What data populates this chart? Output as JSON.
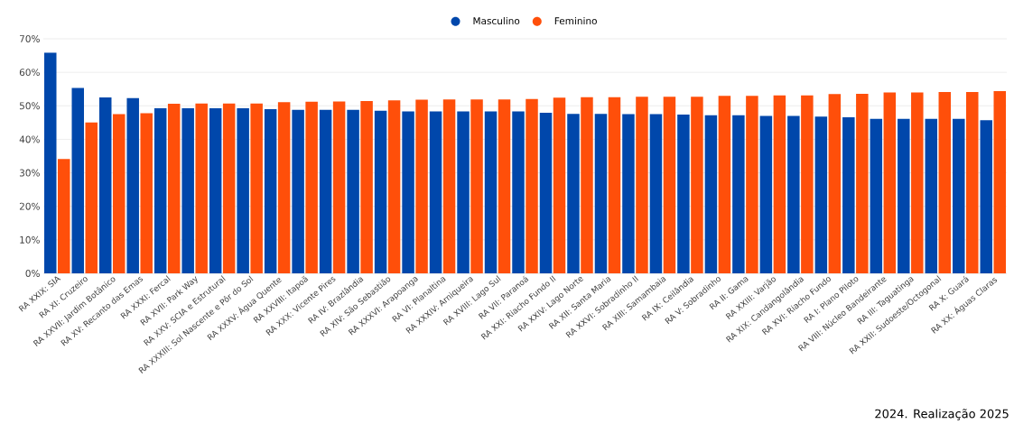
{
  "chart_data": {
    "type": "bar",
    "categories": [
      "RA XXIX: SIA",
      "RA XI: Cruzeiro",
      "RA XXVII: Jardim Botânico",
      "RA XV: Recanto das Emas",
      "RA XXXI: Fercal",
      "RA XVII: Park Way",
      "RA XXV: SCIA e Estrutural",
      "RA XXXIII: Sol Nascente e Pôr do Sol",
      "RA XXXV: Água Quente",
      "RA XXVIII: Itapoã",
      "RA XXX: Vicente Pires",
      "RA IV: Brazlândia",
      "RA XIV: São Sebastião",
      "RA XXXVI: Arapoanga",
      "RA VI: Planaltina",
      "RA XXXIV: Arniqueira",
      "RA XVIII: Lago Sul",
      "RA VII: Paranoá",
      "RA XXI: Riacho Fundo II",
      "RA XXIV: Lago Norte",
      "RA XII: Santa Maria",
      "RA XXVI: Sobradinho II",
      "RA XIII: Samambaia",
      "RA IX: Ceilândia",
      "RA V: Sobradinho",
      "RA II: Gama",
      "RA XXIII: Varjão",
      "RA XIX: Candangolândia",
      "RA XVI: Riacho Fundo",
      "RA I: Plano Piloto",
      "RA VIII: Núcleo Bandeirante",
      "RA III: Taguatinga",
      "RA XXII: Sudoeste/Octogonal",
      "RA X: Guará",
      "RA XX: Águas Claras"
    ],
    "series": [
      {
        "name": "Masculino",
        "color": "#0047ab",
        "values": [
          65.9,
          55.3,
          52.5,
          52.3,
          49.3,
          49.3,
          49.3,
          49.3,
          49.0,
          48.8,
          48.8,
          48.8,
          48.5,
          48.3,
          48.3,
          48.3,
          48.3,
          48.3,
          47.9,
          47.6,
          47.6,
          47.5,
          47.5,
          47.4,
          47.2,
          47.2,
          47.0,
          47.0,
          46.8,
          46.6,
          46.1,
          46.1,
          46.1,
          46.1,
          45.7
        ]
      },
      {
        "name": "Feminino",
        "color": "#ff4f0a",
        "values": [
          34.1,
          45.0,
          47.5,
          47.8,
          50.6,
          50.7,
          50.7,
          50.7,
          51.1,
          51.2,
          51.3,
          51.4,
          51.6,
          51.8,
          51.9,
          51.9,
          51.9,
          52.0,
          52.4,
          52.6,
          52.6,
          52.7,
          52.7,
          52.7,
          53.0,
          53.0,
          53.1,
          53.1,
          53.5,
          53.6,
          54.0,
          54.0,
          54.1,
          54.1,
          54.4
        ]
      }
    ],
    "ylim": [
      0,
      70
    ],
    "yticks": [
      {
        "value": 0,
        "label": "0%"
      },
      {
        "value": 10,
        "label": "10%"
      },
      {
        "value": 20,
        "label": "20%"
      },
      {
        "value": 30,
        "label": "30%"
      },
      {
        "value": 40,
        "label": "40%"
      },
      {
        "value": 50,
        "label": "50%"
      },
      {
        "value": 60,
        "label": "60%"
      },
      {
        "value": 70,
        "label": "70%"
      }
    ],
    "grid": "y",
    "legend": "top",
    "annotations": [
      "2024. Realização 2025"
    ]
  }
}
